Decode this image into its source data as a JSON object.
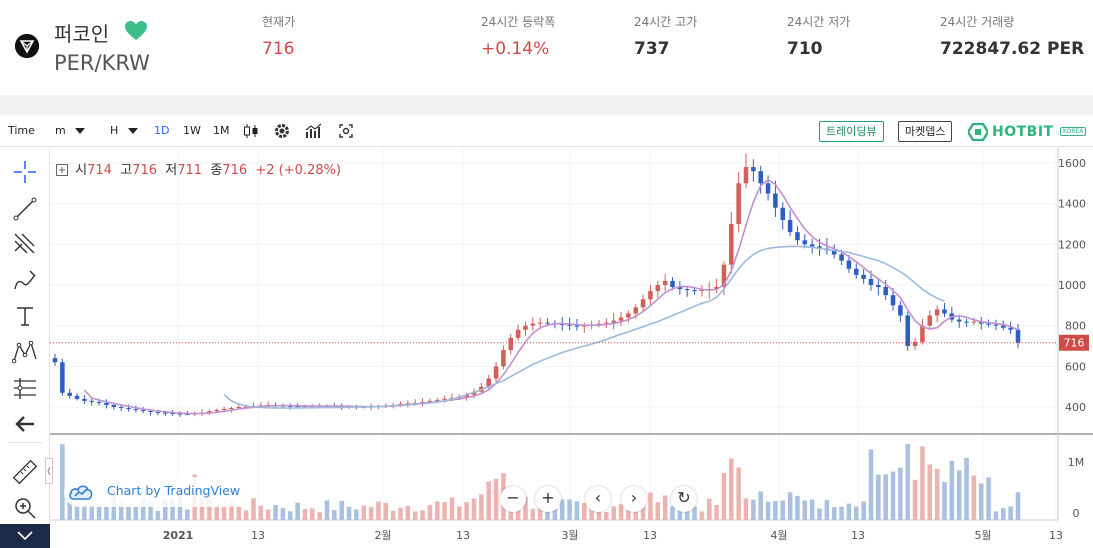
{
  "header": {
    "coin_name": "퍼코인",
    "pair": "PER/KRW",
    "stats": [
      {
        "label": "현재가",
        "value": "716",
        "color": "red"
      },
      {
        "label": "24시간 등락폭",
        "value": "+0.14%",
        "color": "red"
      },
      {
        "label": "24시간 고가",
        "value": "737",
        "color": "dark"
      },
      {
        "label": "24시간 저가",
        "value": "710",
        "color": "dark"
      },
      {
        "label": "24시간 거래량",
        "value": "722847.62 PER",
        "color": "dark"
      }
    ]
  },
  "toolbar": {
    "time_label": "Time",
    "minute": "m",
    "hour": "H",
    "intervals": [
      "1D",
      "1W",
      "1M"
    ],
    "active_interval": "1D",
    "tradingview_btn": "트레이딩뷰",
    "marketdepth_btn": "마켓뎁스",
    "brand": "HOTBIT",
    "brand_badge": "KOREA"
  },
  "legend": {
    "o_label": "시",
    "o": "714",
    "h_label": "고",
    "h": "716",
    "l_label": "저",
    "l": "711",
    "c_label": "종",
    "c": "716",
    "change": "+2 (+0.28%)"
  },
  "watermark": "Chart by TradingView",
  "controls": [
    "−",
    "+",
    "‹",
    "›",
    "↻"
  ],
  "colors": {
    "up": "#d0605a",
    "down": "#2e5fbf",
    "ma_fast": "#c48fd0",
    "ma_slow": "#9cbadc",
    "vol_up": "#ecb4b0",
    "vol_down": "#a9c0e0"
  },
  "chart_data": {
    "type": "candlestick",
    "price_axis_ticks": [
      400,
      600,
      800,
      1000,
      1200,
      1400,
      1600
    ],
    "volume_axis_ticks": [
      "1M",
      "0"
    ],
    "time_axis_labels": [
      "2021",
      "13",
      "2월",
      "13",
      "3월",
      "13",
      "4월",
      "13",
      "5월",
      "13"
    ],
    "last_price": 716,
    "close_series": [
      620,
      470,
      455,
      440,
      430,
      425,
      420,
      410,
      400,
      395,
      390,
      385,
      380,
      375,
      372,
      370,
      368,
      366,
      365,
      368,
      372,
      380,
      385,
      390,
      395,
      400,
      402,
      405,
      408,
      410,
      408,
      406,
      405,
      404,
      404,
      405,
      406,
      405,
      404,
      403,
      402,
      400,
      400,
      402,
      405,
      408,
      410,
      415,
      418,
      420,
      425,
      430,
      435,
      440,
      445,
      450,
      460,
      475,
      500,
      540,
      600,
      680,
      740,
      780,
      800,
      810,
      815,
      812,
      808,
      805,
      800,
      798,
      800,
      805,
      810,
      815,
      825,
      840,
      860,
      890,
      930,
      970,
      1000,
      1020,
      990,
      980,
      975,
      970,
      975,
      980,
      990,
      1100,
      1300,
      1500,
      1580,
      1560,
      1500,
      1450,
      1380,
      1320,
      1260,
      1220,
      1200,
      1190,
      1180,
      1170,
      1150,
      1120,
      1080,
      1050,
      1030,
      1000,
      990,
      950,
      900,
      850,
      700,
      720,
      800,
      850,
      880,
      860,
      830,
      820,
      815,
      820,
      810,
      805,
      800,
      790,
      780,
      716
    ],
    "ma_slow_series": [
      null,
      null,
      null,
      null,
      null,
      null,
      null,
      null,
      null,
      null,
      null,
      null,
      null,
      null,
      null,
      null,
      null,
      null,
      null,
      null,
      null,
      null,
      null,
      460,
      430,
      415,
      405,
      400,
      398,
      396,
      395,
      395,
      395,
      395,
      396,
      396,
      397,
      397,
      398,
      398,
      399,
      400,
      400,
      401,
      402,
      404,
      406,
      408,
      410,
      413,
      416,
      420,
      425,
      430,
      438,
      448,
      460,
      472,
      485,
      500,
      515,
      530,
      550,
      570,
      590,
      610,
      625,
      640,
      655,
      668,
      680,
      690,
      700,
      710,
      720,
      732,
      745,
      758,
      770,
      782,
      795,
      808,
      820,
      835,
      850,
      865,
      880,
      895,
      910,
      920,
      940,
      980,
      1030,
      1080,
      1120,
      1150,
      1170,
      1180,
      1185,
      1188,
      1190,
      1190,
      1188,
      1185,
      1180,
      1175,
      1170,
      1165,
      1160,
      1150,
      1140,
      1130,
      1120,
      1105,
      1085,
      1065,
      1040,
      1010,
      980,
      955,
      935,
      920
    ]
  }
}
